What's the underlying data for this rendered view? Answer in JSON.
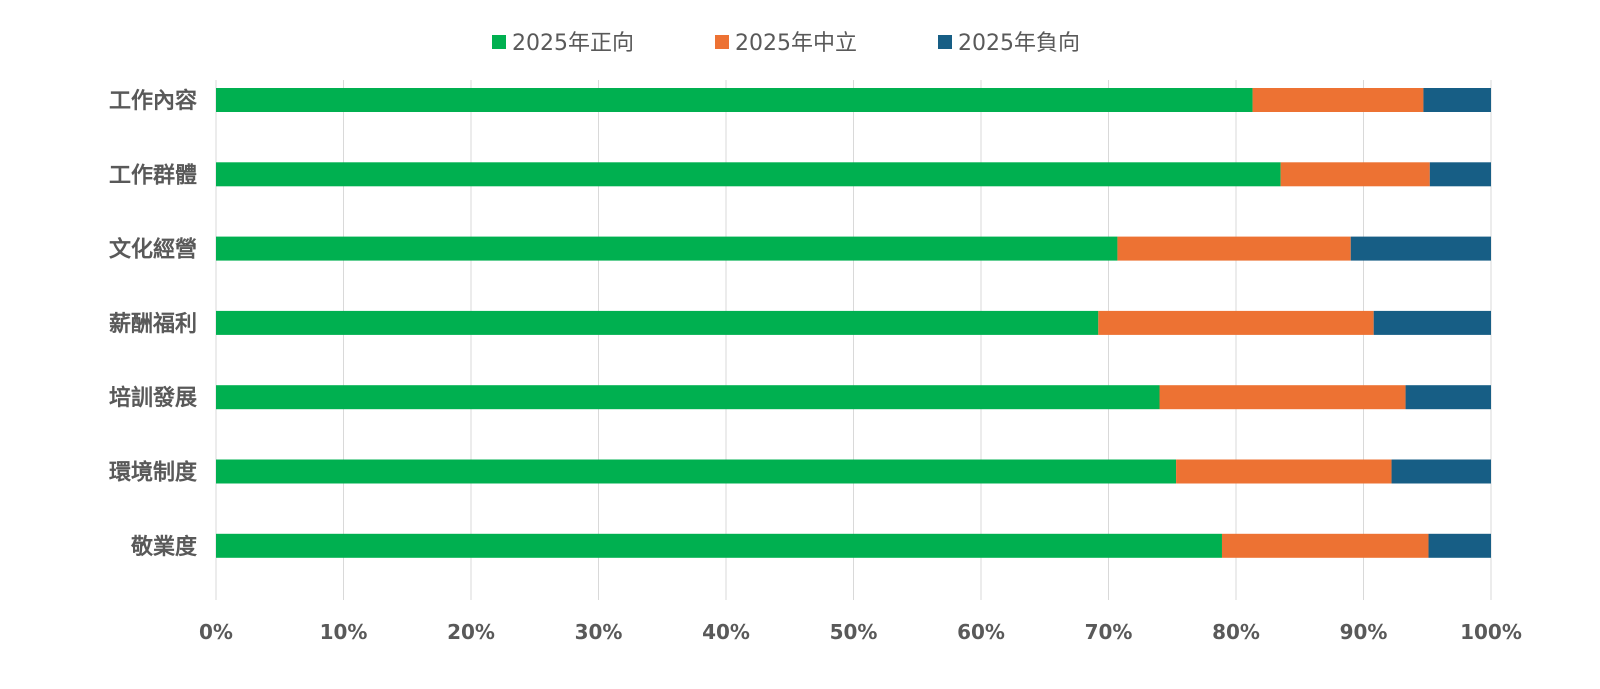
{
  "chart_data": {
    "type": "bar",
    "orientation": "horizontal",
    "stacked": "100%",
    "title": "",
    "xlabel": "",
    "ylabel": "",
    "categories": [
      "工作內容",
      "工作群體",
      "文化經營",
      "薪酬福利",
      "培訓發展",
      "環境制度",
      "敬業度"
    ],
    "series": [
      {
        "name": "2025年正向",
        "color": "#00B050",
        "values": [
          81.3,
          83.5,
          70.7,
          69.2,
          74.0,
          75.3,
          78.9
        ]
      },
      {
        "name": "2025年中立",
        "color": "#ED7233",
        "values": [
          13.4,
          11.7,
          18.3,
          21.6,
          19.3,
          16.9,
          16.2
        ]
      },
      {
        "name": "2025年負向",
        "color": "#175E85",
        "values": [
          5.3,
          4.8,
          11.0,
          9.2,
          6.7,
          7.8,
          4.9
        ]
      }
    ],
    "x_ticks": [
      "0%",
      "10%",
      "20%",
      "30%",
      "40%",
      "50%",
      "60%",
      "70%",
      "80%",
      "90%",
      "100%"
    ],
    "xlim": [
      0,
      100
    ],
    "grid": "vertical",
    "legend": "top-center"
  }
}
